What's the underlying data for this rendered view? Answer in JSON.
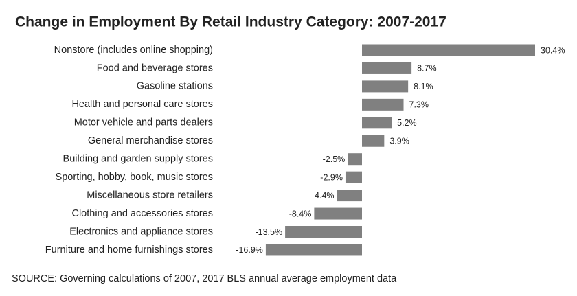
{
  "chart_data": {
    "type": "bar",
    "orientation": "horizontal",
    "title": "Change in Employment By Retail Industry Category: 2007-2017",
    "categories": [
      "Nonstore (includes online shopping)",
      "Food and beverage stores",
      "Gasoline stations",
      "Health and personal care stores",
      "Motor vehicle and parts dealers",
      "General merchandise stores",
      "Building and garden supply stores",
      "Sporting, hobby, book, music stores",
      "Miscellaneous store retailers",
      "Clothing and accessories stores",
      "Electronics and appliance stores",
      "Furniture and home furnishings stores"
    ],
    "values": [
      30.4,
      8.7,
      8.1,
      7.3,
      5.2,
      3.9,
      -2.5,
      -2.9,
      -4.4,
      -8.4,
      -13.5,
      -16.9
    ],
    "value_labels": [
      "30.4%",
      "8.7%",
      "8.1%",
      "7.3%",
      "5.2%",
      "3.9%",
      "-2.5%",
      "-2.9%",
      "-4.4%",
      "-8.4%",
      "-13.5%",
      "-16.9%"
    ],
    "color": "#808080",
    "source": "SOURCE: Governing calculations of 2007, 2017 BLS annual average employment data"
  }
}
